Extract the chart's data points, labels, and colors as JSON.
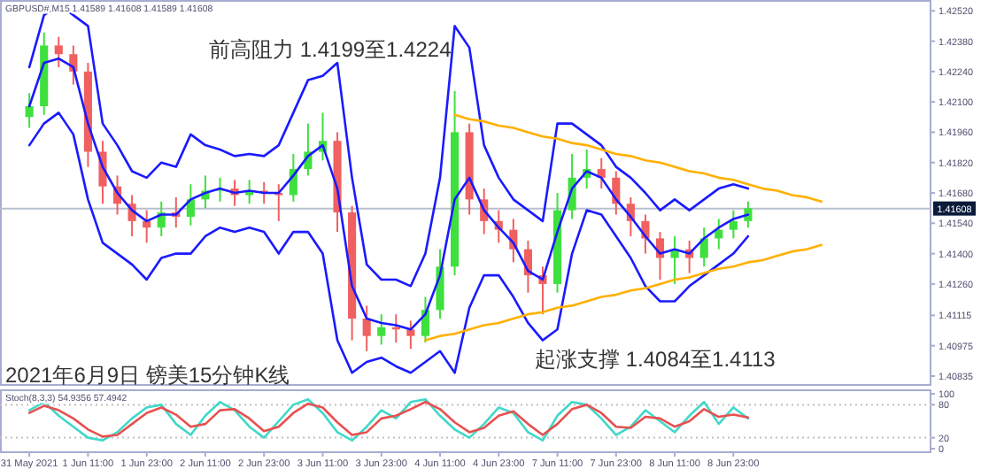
{
  "chart_data": [
    {
      "type": "candlestick",
      "title": "GBPUSD#,M15  1.41589 1.41608 1.41589 1.41608",
      "annotations": [
        "前高阻力 1.4199至1.4224",
        "起涨支撑 1.4084至1.4113",
        "2021年6月9日 镑美15分钟K线"
      ],
      "categories": [
        null,
        null,
        null,
        null,
        null,
        null,
        null,
        null,
        null,
        null,
        null,
        null,
        null,
        null,
        null,
        null,
        null,
        null,
        null,
        null,
        null,
        null,
        null,
        null,
        null,
        null,
        null,
        null,
        null,
        null,
        null,
        null,
        null,
        null,
        null,
        null,
        null,
        null,
        null,
        null,
        null,
        null,
        null,
        null,
        null,
        null,
        null,
        null,
        null,
        null,
        null,
        null,
        null,
        null,
        null,
        null,
        null,
        null,
        null,
        null,
        null,
        null
      ],
      "ohlc": [
        [
          1.4203,
          1.4214,
          1.4198,
          1.4208
        ],
        [
          1.4208,
          1.4242,
          1.4204,
          1.4236
        ],
        [
          1.4236,
          1.424,
          1.4226,
          1.4232
        ],
        [
          1.4232,
          1.4236,
          1.4218,
          1.4224
        ],
        [
          1.4224,
          1.4228,
          1.418,
          1.4187
        ],
        [
          1.4187,
          1.4192,
          1.4163,
          1.4171
        ],
        [
          1.4171,
          1.4176,
          1.4158,
          1.4163
        ],
        [
          1.4163,
          1.4167,
          1.4148,
          1.4155
        ],
        [
          1.4155,
          1.416,
          1.4145,
          1.4152
        ],
        [
          1.4152,
          1.4164,
          1.4148,
          1.4159
        ],
        [
          1.4159,
          1.4166,
          1.4152,
          1.4157
        ],
        [
          1.4157,
          1.4172,
          1.4153,
          1.4165
        ],
        [
          1.4165,
          1.4176,
          1.4161,
          1.4169
        ],
        [
          1.4169,
          1.4175,
          1.4164,
          1.417
        ],
        [
          1.417,
          1.4174,
          1.4162,
          1.4167
        ],
        [
          1.4167,
          1.4174,
          1.4163,
          1.4169
        ],
        [
          1.4169,
          1.4173,
          1.4163,
          1.4168
        ],
        [
          1.4168,
          1.4172,
          1.4155,
          1.4167
        ],
        [
          1.4167,
          1.4186,
          1.4164,
          1.4179
        ],
        [
          1.4179,
          1.42,
          1.4176,
          1.4187
        ],
        [
          1.4187,
          1.4205,
          1.4183,
          1.4192
        ],
        [
          1.4192,
          1.4196,
          1.415,
          1.4159
        ],
        [
          1.4159,
          1.4162,
          1.41,
          1.411
        ],
        [
          1.411,
          1.4116,
          1.4095,
          1.4102
        ],
        [
          1.4102,
          1.4112,
          1.4098,
          1.4106
        ],
        [
          1.4106,
          1.4112,
          1.4099,
          1.4105
        ],
        [
          1.4105,
          1.4109,
          1.4096,
          1.4102
        ],
        [
          1.4102,
          1.412,
          1.4099,
          1.4114
        ],
        [
          1.4114,
          1.4142,
          1.411,
          1.4134
        ],
        [
          1.4134,
          1.4215,
          1.413,
          1.4196
        ],
        [
          1.4196,
          1.42,
          1.4158,
          1.4165
        ],
        [
          1.4165,
          1.417,
          1.4149,
          1.4155
        ],
        [
          1.4155,
          1.416,
          1.4145,
          1.4151
        ],
        [
          1.4151,
          1.4156,
          1.4136,
          1.4142
        ],
        [
          1.4142,
          1.4146,
          1.4122,
          1.413
        ],
        [
          1.413,
          1.4134,
          1.4112,
          1.4126
        ],
        [
          1.4126,
          1.4168,
          1.4122,
          1.416
        ],
        [
          1.416,
          1.4186,
          1.4156,
          1.4175
        ],
        [
          1.4175,
          1.4188,
          1.417,
          1.4179
        ],
        [
          1.4179,
          1.4184,
          1.417,
          1.4175
        ],
        [
          1.4175,
          1.4178,
          1.4158,
          1.4163
        ],
        [
          1.4163,
          1.4166,
          1.4148,
          1.4155
        ],
        [
          1.4155,
          1.4158,
          1.414,
          1.4147
        ],
        [
          1.4147,
          1.415,
          1.4128,
          1.4138
        ],
        [
          1.4138,
          1.4148,
          1.4126,
          1.4142
        ],
        [
          1.4142,
          1.4146,
          1.4131,
          1.4138
        ],
        [
          1.4138,
          1.4152,
          1.4134,
          1.4147
        ],
        [
          1.4147,
          1.4156,
          1.4142,
          1.4151
        ],
        [
          1.4151,
          1.416,
          1.4147,
          1.4155
        ],
        [
          1.4155,
          1.4164,
          1.4152,
          1.4161
        ],
        null,
        null,
        null,
        null,
        null,
        null,
        null,
        null,
        null,
        null,
        null,
        null
      ],
      "colors": [
        "#3ee03e",
        "#3ee03e",
        "#f06060",
        "#f06060",
        "#f06060",
        "#f06060",
        "#f06060",
        "#f06060",
        "#f06060",
        "#3ee03e",
        "#f06060",
        "#3ee03e",
        "#3ee03e",
        "#3ee03e",
        "#f06060",
        "#3ee03e",
        "#f06060",
        "#f06060",
        "#3ee03e",
        "#3ee03e",
        "#3ee03e",
        "#f06060",
        "#f06060",
        "#f06060",
        "#3ee03e",
        "#f06060",
        "#f06060",
        "#3ee03e",
        "#3ee03e",
        "#3ee03e",
        "#f06060",
        "#f06060",
        "#f06060",
        "#f06060",
        "#f06060",
        "#f06060",
        "#3ee03e",
        "#3ee03e",
        "#3ee03e",
        "#f06060",
        "#f06060",
        "#f06060",
        "#f06060",
        "#f06060",
        "#3ee03e",
        "#f06060",
        "#3ee03e",
        "#3ee03e",
        "#3ee03e",
        "#3ee03e",
        null,
        null,
        null,
        null,
        null,
        null,
        null,
        null,
        null,
        null,
        null,
        null
      ],
      "series": [
        {
          "type": "line",
          "color": "#1a1aff",
          "values": [
            1.4226,
            1.425,
            1.4255,
            1.425,
            1.4245,
            1.42,
            1.419,
            1.4178,
            1.4175,
            1.4182,
            1.418,
            1.4195,
            1.419,
            1.4188,
            1.4185,
            1.4186,
            1.4185,
            1.419,
            1.4205,
            1.422,
            1.4222,
            1.4228,
            1.4175,
            1.4135,
            1.4128,
            1.4128,
            1.4125,
            1.414,
            1.4175,
            1.4245,
            1.4235,
            1.419,
            1.4175,
            1.4165,
            1.416,
            1.4155,
            1.42,
            1.42,
            1.4195,
            1.419,
            1.418,
            1.4175,
            1.4168,
            1.416,
            1.4165,
            1.416,
            1.4165,
            1.417,
            1.4172,
            1.417,
            null,
            null,
            null,
            null,
            null,
            null,
            null,
            null,
            null,
            null,
            null,
            null
          ]
        },
        {
          "type": "line",
          "color": "#1a1aff",
          "values": [
            1.4208,
            1.4228,
            1.423,
            1.4226,
            1.42,
            1.418,
            1.4168,
            1.416,
            1.4155,
            1.4158,
            1.4158,
            1.4165,
            1.4168,
            1.417,
            1.4168,
            1.4169,
            1.4168,
            1.4168,
            1.4176,
            1.4185,
            1.419,
            1.417,
            1.4125,
            1.411,
            1.4108,
            1.4107,
            1.4105,
            1.4112,
            1.413,
            1.4165,
            1.4175,
            1.416,
            1.4152,
            1.4145,
            1.4132,
            1.4128,
            1.415,
            1.417,
            1.4178,
            1.4175,
            1.4165,
            1.4157,
            1.4148,
            1.414,
            1.4142,
            1.414,
            1.4147,
            1.4152,
            1.4156,
            1.4158,
            null,
            null,
            null,
            null,
            null,
            null,
            null,
            null,
            null,
            null,
            null,
            null
          ]
        },
        {
          "type": "line",
          "color": "#1a1aff",
          "values": [
            1.419,
            1.42,
            1.4205,
            1.4195,
            1.4165,
            1.4145,
            1.414,
            1.4135,
            1.4128,
            1.4138,
            1.414,
            1.414,
            1.4148,
            1.4152,
            1.415,
            1.4152,
            1.415,
            1.414,
            1.415,
            1.415,
            1.414,
            1.41,
            1.4085,
            1.409,
            1.4092,
            1.4088,
            1.4085,
            1.409,
            1.4095,
            1.4085,
            1.4115,
            1.413,
            1.413,
            1.412,
            1.4108,
            1.41,
            1.4105,
            1.414,
            1.416,
            1.4158,
            1.4148,
            1.4138,
            1.4125,
            1.4118,
            1.4118,
            1.4125,
            1.413,
            1.4135,
            1.414,
            1.4148,
            null,
            null,
            null,
            null,
            null,
            null,
            null,
            null,
            null,
            null,
            null,
            null
          ]
        },
        {
          "type": "line",
          "color": "#ffb000",
          "values": [
            null,
            null,
            null,
            null,
            null,
            null,
            null,
            null,
            null,
            null,
            null,
            null,
            null,
            null,
            null,
            null,
            null,
            null,
            null,
            null,
            null,
            null,
            null,
            null,
            null,
            null,
            null,
            null,
            null,
            1.4204,
            1.4202,
            1.4201,
            1.4199,
            1.4198,
            1.4196,
            1.4194,
            1.4193,
            1.4191,
            1.419,
            1.4188,
            1.4186,
            1.4185,
            1.4183,
            1.4182,
            1.418,
            1.4178,
            1.4177,
            1.4175,
            1.4174,
            1.4172,
            1.417,
            1.4169,
            1.4167,
            1.4166,
            1.4164,
            null,
            null,
            null,
            null,
            null,
            null,
            null
          ]
        },
        {
          "type": "line",
          "color": "#ffb000",
          "values": [
            null,
            null,
            null,
            null,
            null,
            null,
            null,
            null,
            null,
            null,
            null,
            null,
            null,
            null,
            null,
            null,
            null,
            null,
            null,
            null,
            null,
            null,
            null,
            null,
            null,
            null,
            null,
            1.41,
            1.4102,
            1.4103,
            1.4105,
            1.4107,
            1.4108,
            1.411,
            1.4112,
            1.4113,
            1.4115,
            1.4116,
            1.4118,
            1.412,
            1.4121,
            1.4123,
            1.4124,
            1.4126,
            1.4128,
            1.4129,
            1.4131,
            1.4133,
            1.4134,
            1.4136,
            1.4137,
            1.4139,
            1.4141,
            1.4142,
            1.4144,
            null,
            null,
            null,
            null,
            null,
            null,
            null
          ]
        }
      ],
      "ref_lines": [
        {
          "axis": "y",
          "value": 1.41608,
          "label": "1.41608",
          "color": "#b8c0d0"
        }
      ],
      "ylim": [
        1.4079,
        1.4257
      ],
      "yticks": [
        {
          "value": 1.4252,
          "label": "1.42520"
        },
        {
          "value": 1.4238,
          "label": "1.42380"
        },
        {
          "value": 1.4224,
          "label": "1.42240"
        },
        {
          "value": 1.421,
          "label": "1.42100"
        },
        {
          "value": 1.4196,
          "label": "1.41960"
        },
        {
          "value": 1.4182,
          "label": "1.41820"
        },
        {
          "value": 1.4168,
          "label": "1.41680"
        },
        {
          "value": 1.4154,
          "label": "1.41540"
        },
        {
          "value": 1.414,
          "label": "1.41400"
        },
        {
          "value": 1.4126,
          "label": "1.41260"
        },
        {
          "value": 1.41115,
          "label": "1.41115"
        },
        {
          "value": 1.40975,
          "label": "1.40975"
        },
        {
          "value": 1.40835,
          "label": "1.40835"
        }
      ],
      "tick_labels": "y"
    },
    {
      "type": "line",
      "title": "Stoch(8,3,3) 54.9356 57.4942",
      "categories": [
        "31 May 2021",
        null,
        null,
        null,
        "1 Jun 11:00",
        null,
        null,
        null,
        "1 Jun 23:00",
        null,
        null,
        null,
        "2 Jun 11:00",
        null,
        null,
        null,
        "2 Jun 23:00",
        null,
        null,
        null,
        "3 Jun 11:00",
        null,
        null,
        null,
        "3 Jun 23:00",
        null,
        null,
        null,
        "4 Jun 11:00",
        null,
        null,
        null,
        "4 Jun 23:00",
        null,
        null,
        null,
        "7 Jun 11:00",
        null,
        null,
        null,
        "7 Jun 23:00",
        null,
        null,
        null,
        "8 Jun 11:00",
        null,
        null,
        null,
        "8 Jun 23:00",
        null,
        null,
        null,
        null,
        null,
        null,
        null,
        null,
        null,
        null,
        null,
        null,
        null
      ],
      "series": [
        {
          "color": "#40d8c8",
          "values": [
            70,
            85,
            60,
            40,
            20,
            15,
            30,
            55,
            75,
            80,
            45,
            25,
            60,
            85,
            70,
            40,
            20,
            50,
            80,
            90,
            65,
            30,
            15,
            40,
            70,
            55,
            85,
            90,
            60,
            35,
            20,
            45,
            75,
            65,
            30,
            15,
            60,
            85,
            80,
            55,
            25,
            40,
            70,
            50,
            30,
            60,
            85,
            45,
            75,
            55,
            null,
            null,
            null,
            null,
            null,
            null,
            null,
            null,
            null,
            null,
            null,
            null
          ]
        },
        {
          "color": "#e85050",
          "values": [
            65,
            78,
            70,
            55,
            35,
            22,
            25,
            45,
            65,
            75,
            62,
            40,
            45,
            70,
            72,
            55,
            32,
            40,
            65,
            82,
            75,
            48,
            25,
            30,
            55,
            60,
            72,
            85,
            72,
            48,
            30,
            38,
            60,
            68,
            45,
            25,
            45,
            72,
            80,
            65,
            40,
            38,
            58,
            55,
            40,
            50,
            72,
            58,
            62,
            57,
            null,
            null,
            null,
            null,
            null,
            null,
            null,
            null,
            null,
            null,
            null,
            null
          ]
        }
      ],
      "ref_lines": [
        {
          "axis": "y",
          "value": 80,
          "color": "#c0c0c0",
          "line_style": "dotted"
        },
        {
          "axis": "y",
          "value": 20,
          "color": "#c0c0c0",
          "line_style": "dotted"
        }
      ],
      "ylim": [
        -8,
        108
      ],
      "yticks": [
        0,
        20,
        80,
        100
      ]
    }
  ]
}
